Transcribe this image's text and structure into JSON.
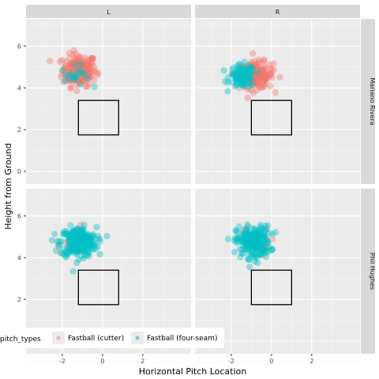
{
  "chart_data": {
    "type": "scatter",
    "title": "",
    "xlabel": "Horizontal Pitch Location",
    "ylabel": "Height from Ground",
    "xlim": [
      -3.8,
      4.4
    ],
    "ylim": [
      -0.6,
      7.3
    ],
    "x_ticks": [
      -2,
      0,
      2
    ],
    "y_ticks": [
      0,
      2,
      4,
      6
    ],
    "grid": true,
    "facet_columns": [
      "L",
      "R"
    ],
    "facet_rows": [
      "Mariano Rivera",
      "Phil Hughes"
    ],
    "strike_zones": {
      "L": {
        "x": [
          -1.2,
          0.8
        ],
        "y": [
          1.75,
          3.4
        ]
      },
      "R": {
        "x": [
          -1.0,
          1.0
        ],
        "y": [
          1.75,
          3.4
        ]
      }
    },
    "legend": {
      "title": "pitch_types",
      "position": "bottom-left",
      "entries": [
        {
          "label": "Fastball (cutter)",
          "color": "#F8766D"
        },
        {
          "label": "Fastball (four-seam)",
          "color": "#00BFC4"
        }
      ]
    },
    "series": [
      {
        "label": "Fastball (cutter)",
        "color": "#F8766D"
      },
      {
        "label": "Fastball (four-seam)",
        "color": "#00BFC4"
      }
    ],
    "panels": [
      {
        "pitcher": "Mariano Rivera",
        "stand": "L",
        "clusters": [
          {
            "series": 0,
            "cx": -1.15,
            "cy": 4.85,
            "sx": 0.42,
            "sy": 0.38,
            "n": 190
          },
          {
            "series": 1,
            "cx": -1.35,
            "cy": 4.55,
            "sx": 0.35,
            "sy": 0.25,
            "n": 22
          }
        ]
      },
      {
        "pitcher": "Mariano Rivera",
        "stand": "R",
        "clusters": [
          {
            "series": 0,
            "cx": -0.75,
            "cy": 4.6,
            "sx": 0.42,
            "sy": 0.32,
            "n": 180
          },
          {
            "series": 1,
            "cx": -1.45,
            "cy": 4.55,
            "sx": 0.32,
            "sy": 0.28,
            "n": 95
          }
        ]
      },
      {
        "pitcher": "Phil Hughes",
        "stand": "L",
        "clusters": [
          {
            "series": 0,
            "cx": -1.35,
            "cy": 4.85,
            "sx": 0.45,
            "sy": 0.3,
            "n": 14
          },
          {
            "series": 1,
            "cx": -1.2,
            "cy": 4.75,
            "sx": 0.45,
            "sy": 0.35,
            "n": 260
          }
        ]
      },
      {
        "pitcher": "Phil Hughes",
        "stand": "R",
        "clusters": [
          {
            "series": 0,
            "cx": -0.9,
            "cy": 4.75,
            "sx": 0.4,
            "sy": 0.35,
            "n": 22
          },
          {
            "series": 1,
            "cx": -0.9,
            "cy": 4.75,
            "sx": 0.42,
            "sy": 0.38,
            "n": 220
          }
        ]
      }
    ]
  }
}
